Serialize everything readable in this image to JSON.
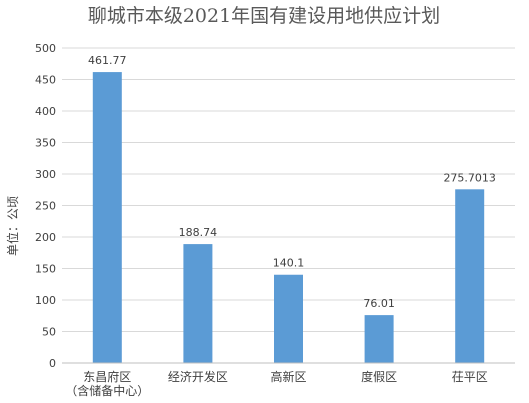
{
  "chart_data": {
    "type": "bar",
    "title": "聊城市本级2021年国有建设用地供应计划",
    "ylabel": "单位：公顷",
    "xlabel": "",
    "categories": [
      [
        "东昌府区",
        "（含储备中心）"
      ],
      [
        "经济开发区"
      ],
      [
        "高新区"
      ],
      [
        "度假区"
      ],
      [
        "茌平区"
      ]
    ],
    "values": [
      461.77,
      188.74,
      140.1,
      76.01,
      275.7013
    ],
    "data_labels": [
      "461.77",
      "188.74",
      "140.1",
      "76.01",
      "275.7013"
    ],
    "ylim": [
      0,
      500
    ],
    "yticks": [
      0,
      50,
      100,
      150,
      200,
      250,
      300,
      350,
      400,
      450,
      500
    ],
    "grid": true,
    "legend": "none",
    "bar_color": "#5b9bd5"
  }
}
